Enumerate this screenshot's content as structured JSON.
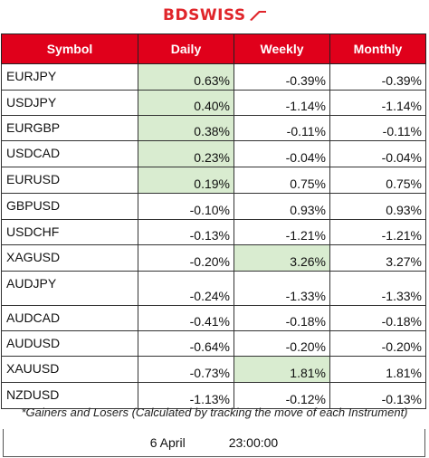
{
  "brand": {
    "name": "BDSWISS",
    "color": "#e0262b",
    "mark": "chevron-arrow-icon"
  },
  "table": {
    "headers": [
      "Symbol",
      "Daily",
      "Weekly",
      "Monthly"
    ],
    "header_color": "#e0001b",
    "highlight_color": "#d9ecd0",
    "rows": [
      {
        "symbol": "EURJPY",
        "daily": "0.63%",
        "weekly": "-0.39%",
        "monthly": "-0.39%",
        "highlight": "daily",
        "height": 29
      },
      {
        "symbol": "USDJPY",
        "daily": "0.40%",
        "weekly": "-1.14%",
        "monthly": "-1.14%",
        "highlight": "daily",
        "height": 28
      },
      {
        "symbol": "EURGBP",
        "daily": "0.38%",
        "weekly": "-0.11%",
        "monthly": "-0.11%",
        "highlight": "daily",
        "height": 28
      },
      {
        "symbol": "USDCAD",
        "daily": "0.23%",
        "weekly": "-0.04%",
        "monthly": "-0.04%",
        "highlight": "daily",
        "height": 29
      },
      {
        "symbol": "EURUSD",
        "daily": "0.19%",
        "weekly": "0.75%",
        "monthly": "0.75%",
        "highlight": "daily",
        "height": 29
      },
      {
        "symbol": "GBPUSD",
        "daily": "-0.10%",
        "weekly": "0.93%",
        "monthly": "0.93%",
        "highlight": "",
        "height": 29
      },
      {
        "symbol": "USDCHF",
        "daily": "-0.13%",
        "weekly": "-1.21%",
        "monthly": "-1.21%",
        "highlight": "",
        "height": 28
      },
      {
        "symbol": "XAGUSD",
        "daily": "-0.20%",
        "weekly": "3.26%",
        "monthly": "3.27%",
        "highlight": "weekly",
        "height": 29
      },
      {
        "symbol": "AUDJPY",
        "daily": "-0.24%",
        "weekly": "-1.33%",
        "monthly": "-1.33%",
        "highlight": "",
        "height": 38
      },
      {
        "symbol": "AUDCAD",
        "daily": "-0.41%",
        "weekly": "-0.18%",
        "monthly": "-0.18%",
        "highlight": "",
        "height": 28
      },
      {
        "symbol": "AUDUSD",
        "daily": "-0.64%",
        "weekly": "-0.20%",
        "monthly": "-0.20%",
        "highlight": "",
        "height": 28
      },
      {
        "symbol": "XAUUSD",
        "daily": "-0.73%",
        "weekly": "1.81%",
        "monthly": "1.81%",
        "highlight": "weekly",
        "height": 29
      },
      {
        "symbol": "NZDUSD",
        "daily": "-1.13%",
        "weekly": "-0.12%",
        "monthly": "-0.13%",
        "highlight": "",
        "height": 29
      }
    ]
  },
  "footnote": "*Gainers and Losers (Calculated by tracking the move of each Instrument)",
  "timestamp": {
    "date": "6 April",
    "time": "23:00:00"
  }
}
